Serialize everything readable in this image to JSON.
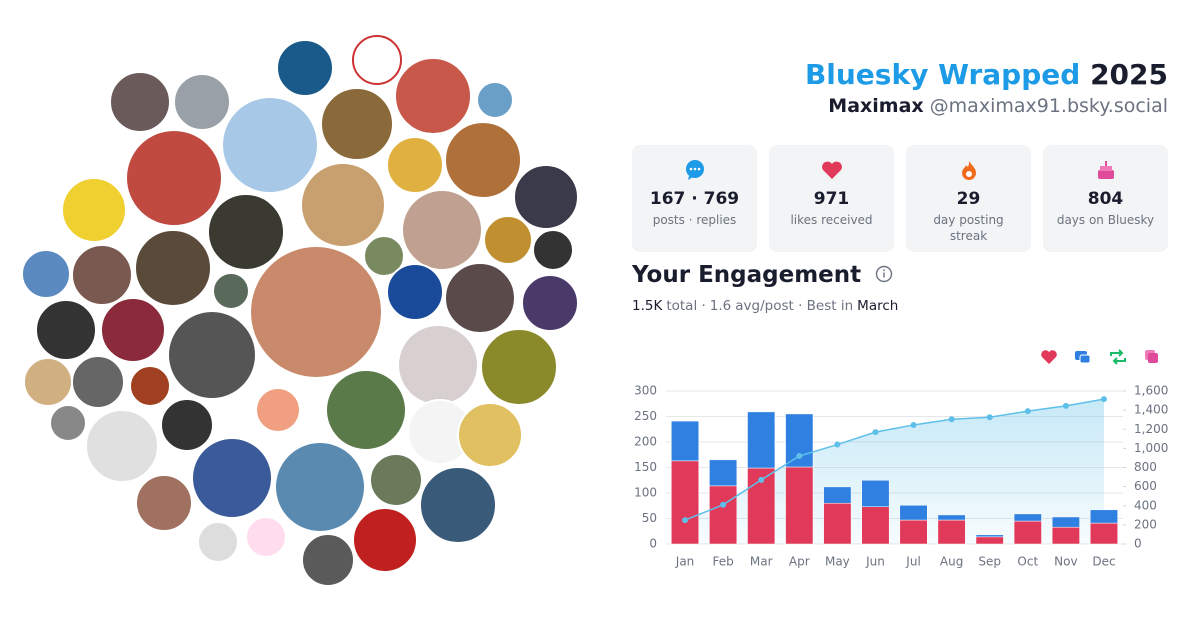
{
  "header": {
    "brand": "Bluesky Wrapped",
    "year": "2025",
    "name": "Maximax",
    "handle": "@maximax91.bsky.social"
  },
  "stats": [
    {
      "value": "167 · 769",
      "label": "posts · replies"
    },
    {
      "value": "971",
      "label": "likes received"
    },
    {
      "value": "29",
      "label": "day posting streak"
    },
    {
      "value": "804",
      "label": "days on Bluesky"
    }
  ],
  "engagement": {
    "title": "Your Engagement",
    "total": "1.5K",
    "total_label": "total ·",
    "avg": "1.6",
    "avg_label": "avg/post · Best in",
    "best": "March"
  },
  "chart_data": {
    "type": "bar",
    "stacked": true,
    "grid": true,
    "categories": [
      "Jan",
      "Feb",
      "Mar",
      "Apr",
      "May",
      "Jun",
      "Jul",
      "Aug",
      "Sep",
      "Oct",
      "Nov",
      "Dec"
    ],
    "series": [
      {
        "color": "#e0395a",
        "values": [
          163,
          114,
          149,
          151,
          80,
          73,
          47,
          47,
          14,
          45,
          33,
          41
        ]
      },
      {
        "color": "#2f80e0",
        "values": [
          78,
          51,
          110,
          104,
          32,
          52,
          29,
          10,
          4,
          14,
          20,
          26
        ]
      },
      {
        "color": "#5ec0e8",
        "type": "line",
        "axis": "y2",
        "values": [
          250,
          410,
          670,
          920,
          1040,
          1170,
          1245,
          1305,
          1325,
          1390,
          1445,
          1515
        ]
      }
    ],
    "ylim": [
      0,
      300
    ],
    "yticks": [
      0,
      50,
      100,
      150,
      200,
      250,
      300
    ],
    "y2lim": [
      0,
      1600
    ],
    "y2ticks": [
      0,
      200,
      400,
      600,
      800,
      {
        "value": 1000,
        "label": "1,000"
      },
      {
        "value": 1200,
        "label": "1,200"
      },
      {
        "value": 1400,
        "label": "1,400"
      },
      {
        "value": 1600,
        "label": "1,600"
      }
    ]
  }
}
